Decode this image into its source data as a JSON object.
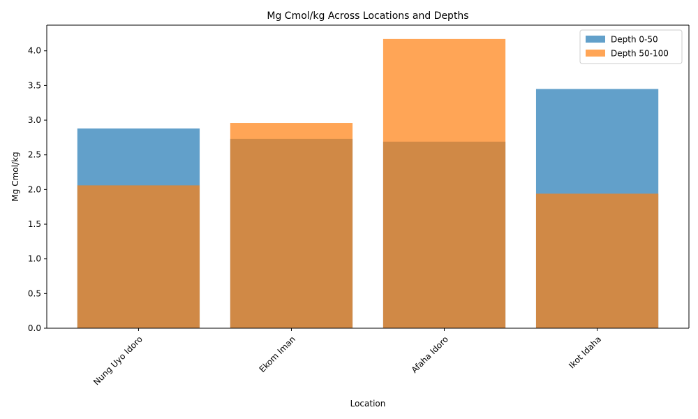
{
  "chart_data": {
    "type": "bar",
    "title": "Mg Cmol/kg Across Locations and Depths",
    "xlabel": "Location",
    "ylabel": "Mg Cmol/kg",
    "categories": [
      "Nung Uyo Idoro",
      "Ekom Iman",
      "Afaha Idoro",
      "Ikot Idaha"
    ],
    "series": [
      {
        "name": "Depth 0-50",
        "values": [
          2.88,
          2.73,
          2.69,
          3.45
        ],
        "color": "#1f77b4",
        "opacity": 0.7
      },
      {
        "name": "Depth 50-100",
        "values": [
          2.06,
          2.96,
          4.17,
          1.94
        ],
        "color": "#ff7f0e",
        "opacity": 0.7
      }
    ],
    "ylim": [
      0,
      4.37
    ],
    "yticks": [
      "0.0",
      "0.5",
      "1.0",
      "1.5",
      "2.0",
      "2.5",
      "3.0",
      "3.5",
      "4.0"
    ],
    "legend_position": "top-right",
    "grid": false
  }
}
